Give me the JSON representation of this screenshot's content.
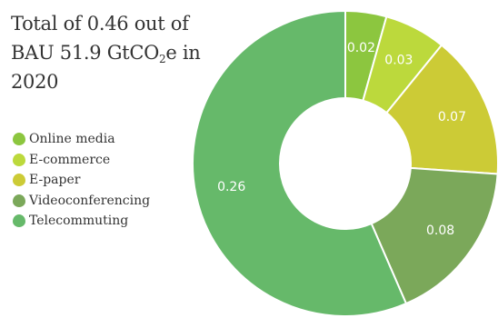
{
  "title": {
    "prefix": "Total of 0.46 out of BAU 51.9 GtCO",
    "subscript": "2",
    "suffix": "e in 2020"
  },
  "chart_data": {
    "type": "pie",
    "donut": true,
    "categories": [
      "Online media",
      "E-commerce",
      "E-paper",
      "Videoconferencing",
      "Telecommuting"
    ],
    "values": [
      0.02,
      0.03,
      0.07,
      0.08,
      0.26
    ],
    "value_labels": [
      "0.02",
      "0.03",
      "0.07",
      "0.08",
      "0.26"
    ],
    "colors": [
      "#8cc63f",
      "#bcd93c",
      "#cccb36",
      "#7ba85a",
      "#66b96a"
    ],
    "legend_position": "left",
    "start_angle": "top, clockwise"
  }
}
